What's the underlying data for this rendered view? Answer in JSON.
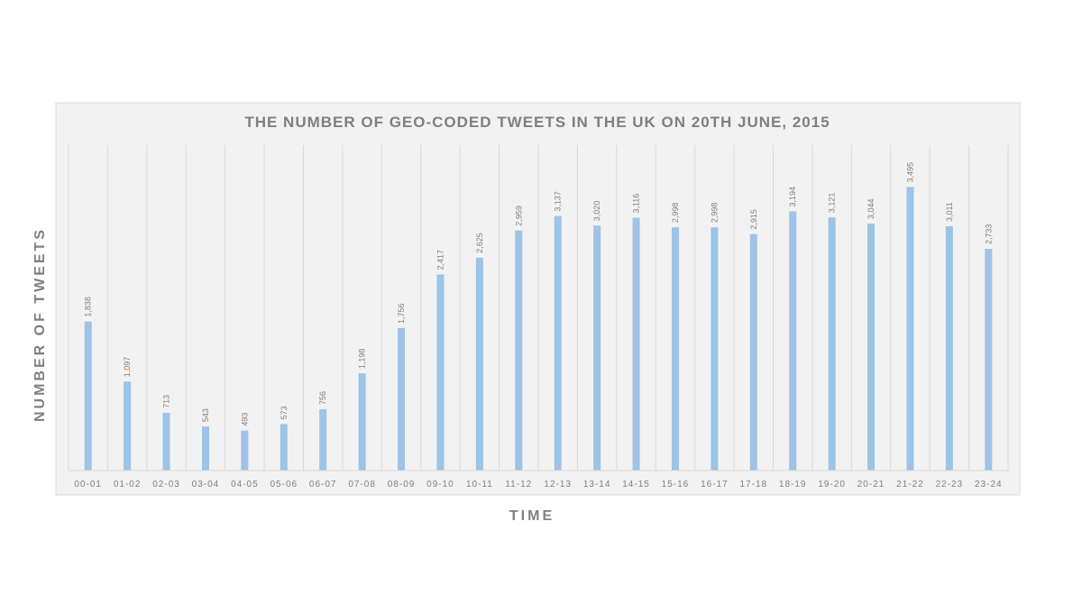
{
  "chart_data": {
    "type": "bar",
    "title": "THE NUMBER OF GEO-CODED TWEETS IN THE UK ON 20TH JUNE, 2015",
    "xlabel": "TIME",
    "ylabel": "NUMBER OF TWEETS",
    "categories": [
      "00-01",
      "01-02",
      "02-03",
      "03-04",
      "04-05",
      "05-06",
      "06-07",
      "07-08",
      "08-09",
      "09-10",
      "10-11",
      "11-12",
      "12-13",
      "13-14",
      "14-15",
      "15-16",
      "16-17",
      "17-18",
      "18-19",
      "19-20",
      "20-21",
      "21-22",
      "22-23",
      "23-24"
    ],
    "values": [
      1838,
      1097,
      713,
      543,
      493,
      573,
      756,
      1198,
      1756,
      2417,
      2625,
      2959,
      3137,
      3020,
      3116,
      2998,
      2998,
      2915,
      3194,
      3121,
      3044,
      3495,
      3011,
      2733
    ],
    "value_labels": [
      "1,838",
      "1,097",
      "713",
      "543",
      "493",
      "573",
      "756",
      "1,198",
      "1,756",
      "2,417",
      "2,625",
      "2,959",
      "3,137",
      "3,020",
      "3,116",
      "2,998",
      "2,998",
      "2,915",
      "3,194",
      "3,121",
      "3,044",
      "3,495",
      "3,011",
      "2,733"
    ],
    "ylim": [
      0,
      4000
    ],
    "grid": "vertical",
    "legend": "none",
    "colors": {
      "bar": "#9dc3e6",
      "plot_background": "#f2f2f2",
      "plot_border": "#d9d9d9",
      "gridline": "#d9d9d9",
      "title_text": "#7f7f7f",
      "axis_text": "#7f7f7f",
      "data_label_text": "#7f7f7f"
    }
  }
}
